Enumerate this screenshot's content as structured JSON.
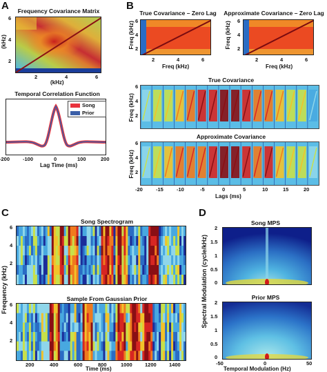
{
  "panel_letters": {
    "a": "A",
    "b": "B",
    "c": "C",
    "d": "D"
  },
  "panel_a": {
    "matrix_title": "Frequency Covariance Matrix",
    "matrix_ylabel": "(kHz)",
    "matrix_xlabel": "(kHz)",
    "matrix_yticks": [
      "6",
      "4",
      "2"
    ],
    "matrix_xticks": [
      "2",
      "4",
      "6"
    ],
    "corr_title": "Temporal Correlation Function",
    "corr_xlabel": "Lag Time (ms)",
    "corr_xticks": [
      "-200",
      "-100",
      "0",
      "100",
      "200"
    ],
    "legend": [
      "Song",
      "Prior"
    ]
  },
  "panel_b": {
    "left_title": "True Covariance – Zero Lag",
    "right_title": "Approximate Covariance – Zero Lag",
    "ylabel": "Freq (kHz)",
    "xlabel": "Freq (kHz)",
    "yticks": [
      "6",
      "4",
      "2"
    ],
    "xticks": [
      "2",
      "4",
      "6"
    ],
    "true_cov_title": "True Covariance",
    "approx_cov_title": "Approximate Covariance",
    "strip_ylabel": "Freq (kHz)",
    "strip_yticks": [
      "6",
      "4",
      "2"
    ],
    "lags_xlabel": "Lags (ms)",
    "lags_xticks": [
      "-20",
      "-15",
      "-10",
      "-5",
      "0",
      "5",
      "10",
      "15",
      "20"
    ]
  },
  "panel_c": {
    "song_title": "Song Spectrogram",
    "sample_title": "Sample From Gaussian Prior",
    "ylabel": "Frequency (kHz)",
    "yticks": [
      "6",
      "4",
      "2"
    ],
    "xlabel": "Time (ms)",
    "xticks": [
      "200",
      "400",
      "600",
      "800",
      "1000",
      "1200",
      "1400"
    ]
  },
  "panel_d": {
    "song_title": "Song MPS",
    "prior_title": "Prior MPS",
    "ylabel": "Spectral Modulation (cycle/kHz)",
    "yticks": [
      "2",
      "1.5",
      "1",
      "0.5",
      "0"
    ],
    "xlabel": "Temporal Modulation (Hz)",
    "xticks": [
      "-50",
      "0",
      "50"
    ]
  },
  "colors": {
    "song": "#e8323c",
    "prior": "#3b5fa8"
  }
}
